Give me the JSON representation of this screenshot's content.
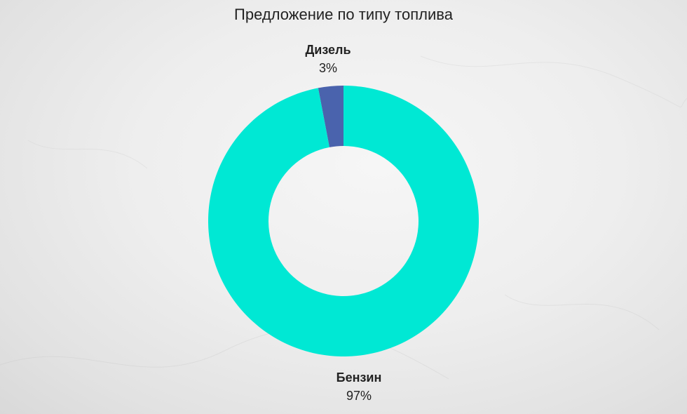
{
  "chart_data": {
    "type": "pie",
    "title": "Предложение по типу топлива",
    "donut": true,
    "slices": [
      {
        "label": "Дизель",
        "value": 3,
        "value_label": "3%",
        "color": "#4a63ad"
      },
      {
        "label": "Бензин",
        "value": 97,
        "value_label": "97%",
        "color": "#00e8d4"
      }
    ],
    "legend": "none"
  }
}
